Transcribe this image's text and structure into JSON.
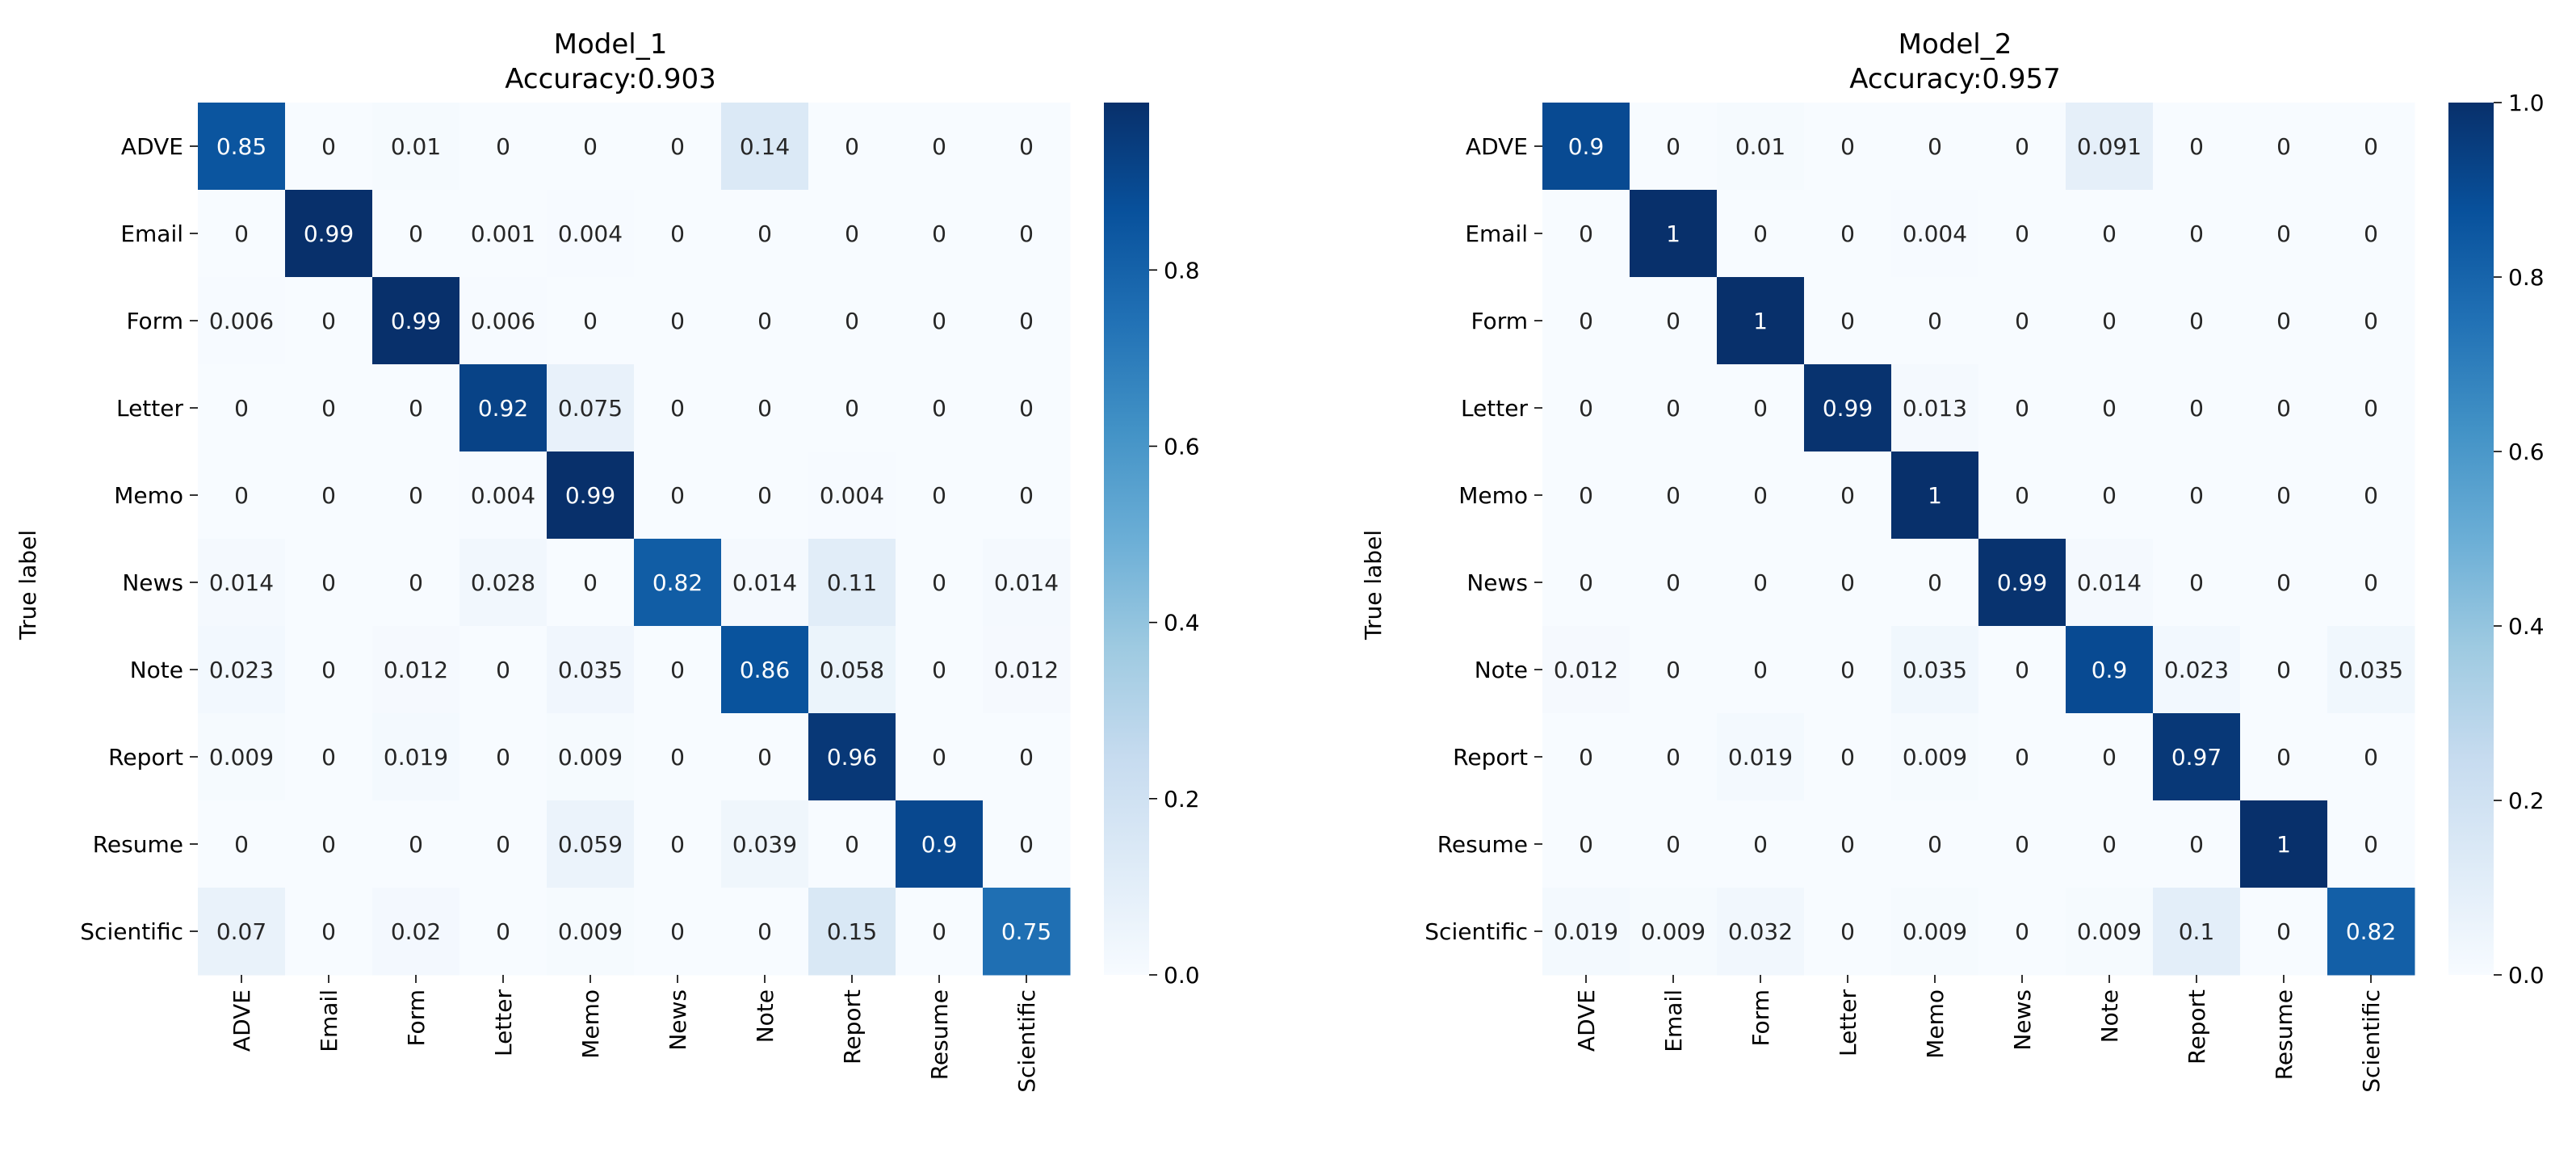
{
  "figure": {
    "description_none": ""
  },
  "chart_data": [
    {
      "type": "heatmap",
      "title": "Model_1",
      "subtitle": "Accuracy:0.903",
      "ylabel": "True label",
      "xlabel": "",
      "row_labels": [
        "ADVE",
        "Email",
        "Form",
        "Letter",
        "Memo",
        "News",
        "Note",
        "Report",
        "Resume",
        "Scientific"
      ],
      "col_labels": [
        "ADVE",
        "Email",
        "Form",
        "Letter",
        "Memo",
        "News",
        "Note",
        "Report",
        "Resume",
        "Scientific"
      ],
      "values": [
        [
          0.85,
          0,
          0.01,
          0,
          0,
          0,
          0.14,
          0,
          0,
          0
        ],
        [
          0,
          0.99,
          0,
          0.001,
          0.004,
          0,
          0,
          0,
          0,
          0
        ],
        [
          0.006,
          0,
          0.99,
          0.006,
          0,
          0,
          0,
          0,
          0,
          0
        ],
        [
          0,
          0,
          0,
          0.92,
          0.075,
          0,
          0,
          0,
          0,
          0
        ],
        [
          0,
          0,
          0,
          0.004,
          0.99,
          0,
          0,
          0.004,
          0,
          0
        ],
        [
          0.014,
          0,
          0,
          0.028,
          0,
          0.82,
          0.014,
          0.11,
          0,
          0.014
        ],
        [
          0.023,
          0,
          0.012,
          0,
          0.035,
          0,
          0.86,
          0.058,
          0,
          0.012
        ],
        [
          0.009,
          0,
          0.019,
          0,
          0.009,
          0,
          0,
          0.96,
          0,
          0
        ],
        [
          0,
          0,
          0,
          0,
          0.059,
          0,
          0.039,
          0,
          0.9,
          0
        ],
        [
          0.07,
          0,
          0.02,
          0,
          0.009,
          0,
          0,
          0.15,
          0,
          0.75
        ]
      ],
      "cell_labels": [
        [
          "0.85",
          "0",
          "0.01",
          "0",
          "0",
          "0",
          "0.14",
          "0",
          "0",
          "0"
        ],
        [
          "0",
          "0.99",
          "0",
          "0.001",
          "0.004",
          "0",
          "0",
          "0",
          "0",
          "0"
        ],
        [
          "0.006",
          "0",
          "0.99",
          "0.006",
          "0",
          "0",
          "0",
          "0",
          "0",
          "0"
        ],
        [
          "0",
          "0",
          "0",
          "0.92",
          "0.075",
          "0",
          "0",
          "0",
          "0",
          "0"
        ],
        [
          "0",
          "0",
          "0",
          "0.004",
          "0.99",
          "0",
          "0",
          "0.004",
          "0",
          "0"
        ],
        [
          "0.014",
          "0",
          "0",
          "0.028",
          "0",
          "0.82",
          "0.014",
          "0.11",
          "0",
          "0.014"
        ],
        [
          "0.023",
          "0",
          "0.012",
          "0",
          "0.035",
          "0",
          "0.86",
          "0.058",
          "0",
          "0.012"
        ],
        [
          "0.009",
          "0",
          "0.019",
          "0",
          "0.009",
          "0",
          "0",
          "0.96",
          "0",
          "0"
        ],
        [
          "0",
          "0",
          "0",
          "0",
          "0.059",
          "0",
          "0.039",
          "0",
          "0.9",
          "0"
        ],
        [
          "0.07",
          "0",
          "0.02",
          "0",
          "0.009",
          "0",
          "0",
          "0.15",
          "0",
          "0.75"
        ]
      ],
      "colorbar": {
        "vmin": 0,
        "vmax": 0.99,
        "ticks": [
          0.0,
          0.2,
          0.4,
          0.6,
          0.8
        ],
        "tick_labels": [
          "0.0",
          "0.2",
          "0.4",
          "0.6",
          "0.8"
        ]
      },
      "colormap": "Blues"
    },
    {
      "type": "heatmap",
      "title": "Model_2",
      "subtitle": "Accuracy:0.957",
      "ylabel": "True label",
      "xlabel": "",
      "row_labels": [
        "ADVE",
        "Email",
        "Form",
        "Letter",
        "Memo",
        "News",
        "Note",
        "Report",
        "Resume",
        "Scientific"
      ],
      "col_labels": [
        "ADVE",
        "Email",
        "Form",
        "Letter",
        "Memo",
        "News",
        "Note",
        "Report",
        "Resume",
        "Scientific"
      ],
      "values": [
        [
          0.9,
          0,
          0.01,
          0,
          0,
          0,
          0.091,
          0,
          0,
          0
        ],
        [
          0,
          1,
          0,
          0,
          0.004,
          0,
          0,
          0,
          0,
          0
        ],
        [
          0,
          0,
          1,
          0,
          0,
          0,
          0,
          0,
          0,
          0
        ],
        [
          0,
          0,
          0,
          0.99,
          0.013,
          0,
          0,
          0,
          0,
          0
        ],
        [
          0,
          0,
          0,
          0,
          1,
          0,
          0,
          0,
          0,
          0
        ],
        [
          0,
          0,
          0,
          0,
          0,
          0.99,
          0.014,
          0,
          0,
          0
        ],
        [
          0.012,
          0,
          0,
          0,
          0.035,
          0,
          0.9,
          0.023,
          0,
          0.035
        ],
        [
          0,
          0,
          0.019,
          0,
          0.009,
          0,
          0,
          0.97,
          0,
          0
        ],
        [
          0,
          0,
          0,
          0,
          0,
          0,
          0,
          0,
          1,
          0
        ],
        [
          0.019,
          0.009,
          0.032,
          0,
          0.009,
          0,
          0.009,
          0.1,
          0,
          0.82
        ]
      ],
      "cell_labels": [
        [
          "0.9",
          "0",
          "0.01",
          "0",
          "0",
          "0",
          "0.091",
          "0",
          "0",
          "0"
        ],
        [
          "0",
          "1",
          "0",
          "0",
          "0.004",
          "0",
          "0",
          "0",
          "0",
          "0"
        ],
        [
          "0",
          "0",
          "1",
          "0",
          "0",
          "0",
          "0",
          "0",
          "0",
          "0"
        ],
        [
          "0",
          "0",
          "0",
          "0.99",
          "0.013",
          "0",
          "0",
          "0",
          "0",
          "0"
        ],
        [
          "0",
          "0",
          "0",
          "0",
          "1",
          "0",
          "0",
          "0",
          "0",
          "0"
        ],
        [
          "0",
          "0",
          "0",
          "0",
          "0",
          "0.99",
          "0.014",
          "0",
          "0",
          "0"
        ],
        [
          "0.012",
          "0",
          "0",
          "0",
          "0.035",
          "0",
          "0.9",
          "0.023",
          "0",
          "0.035"
        ],
        [
          "0",
          "0",
          "0.019",
          "0",
          "0.009",
          "0",
          "0",
          "0.97",
          "0",
          "0"
        ],
        [
          "0",
          "0",
          "0",
          "0",
          "0",
          "0",
          "0",
          "0",
          "1",
          "0"
        ],
        [
          "0.019",
          "0.009",
          "0.032",
          "0",
          "0.009",
          "0",
          "0.009",
          "0.1",
          "0",
          "0.82"
        ]
      ],
      "colorbar": {
        "vmin": 0,
        "vmax": 1.0,
        "ticks": [
          0.0,
          0.2,
          0.4,
          0.6,
          0.8,
          1.0
        ],
        "tick_labels": [
          "0.0",
          "0.2",
          "0.4",
          "0.6",
          "0.8",
          "1.0"
        ]
      },
      "colormap": "Blues"
    }
  ]
}
